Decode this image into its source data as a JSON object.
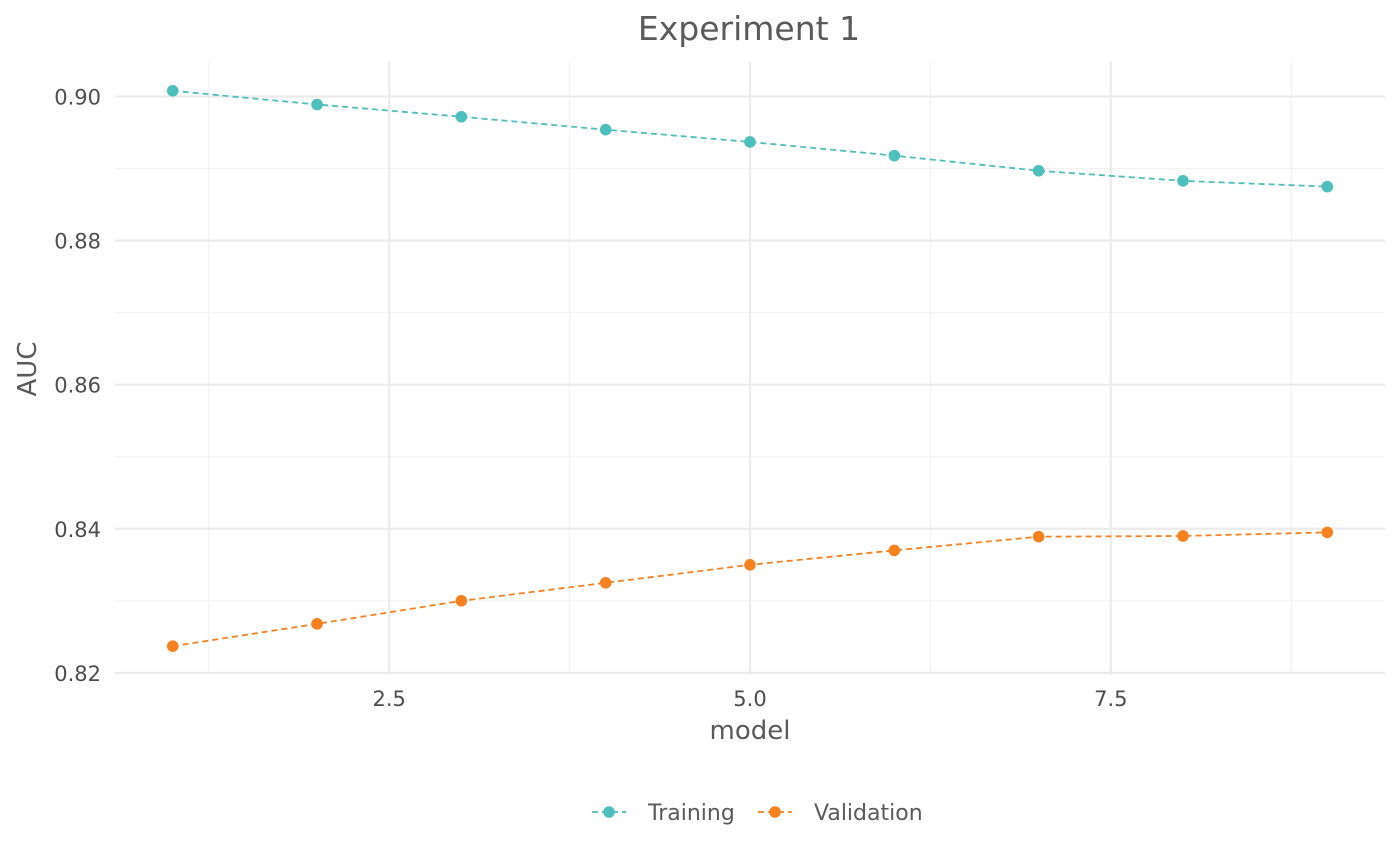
{
  "chart_data": {
    "type": "line",
    "title": "Experiment 1",
    "xlabel": "model",
    "ylabel": "AUC",
    "xlim": [
      0.6,
      9.4
    ],
    "ylim": [
      0.8197,
      0.9048
    ],
    "x_ticks": [
      2.5,
      5.0,
      7.5
    ],
    "x_tick_labels": [
      "2.5",
      "5.0",
      "7.5"
    ],
    "y_ticks": [
      0.82,
      0.84,
      0.86,
      0.88,
      0.9
    ],
    "y_tick_labels": [
      "0.82",
      "0.84",
      "0.86",
      "0.88",
      "0.90"
    ],
    "grid": true,
    "legend_position": "bottom",
    "x": [
      1,
      2,
      3,
      4,
      5,
      6,
      7,
      8,
      9
    ],
    "series": [
      {
        "name": "Training",
        "color": "#4dbfbc",
        "line_style": "dashed",
        "values": [
          0.9008,
          0.8989,
          0.8972,
          0.8954,
          0.8937,
          0.8918,
          0.8897,
          0.8883,
          0.8875
        ]
      },
      {
        "name": "Validation",
        "color": "#f5821f",
        "line_style": "dashed",
        "values": [
          0.8237,
          0.8268,
          0.83,
          0.8325,
          0.835,
          0.837,
          0.8389,
          0.839,
          0.8395
        ]
      }
    ]
  }
}
